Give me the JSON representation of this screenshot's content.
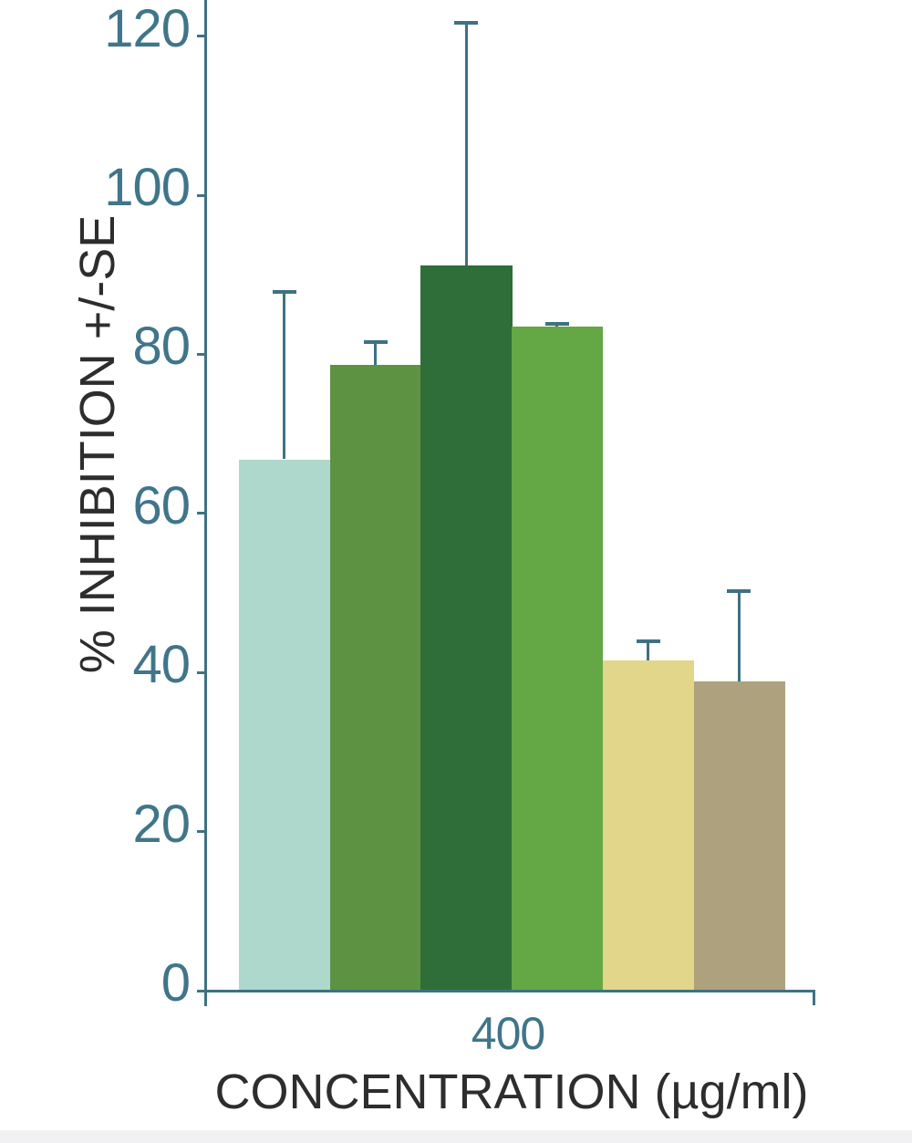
{
  "chart_data": {
    "type": "bar",
    "title": "",
    "categories": [
      "400"
    ],
    "values": [
      66.8,
      78.7,
      91.2,
      83.5,
      41.5,
      38.9
    ],
    "errors_plus": [
      21,
      2.8,
      30.5,
      0.3,
      2.4,
      11.3
    ],
    "error_bars": "upper-only",
    "bar_colors": [
      "#afd8cc",
      "#5e9243",
      "#2f6e38",
      "#63a845",
      "#e2d68a",
      "#ada17e"
    ],
    "xlabel": "CONCENTRATION (µg/ml)",
    "ylabel": "% INHIBITION +/-SE",
    "y_ticks": [
      0,
      20,
      40,
      60,
      80,
      100,
      120
    ],
    "ylim": [
      0,
      124
    ],
    "grid": false,
    "legend_position": "none",
    "axis_color": "#3f7183",
    "tick_label_color": "#40758a",
    "axis_title_color": "#2d2d2d",
    "background_color": "#ffffff",
    "footer_strip_color": "#f1f0f2"
  }
}
